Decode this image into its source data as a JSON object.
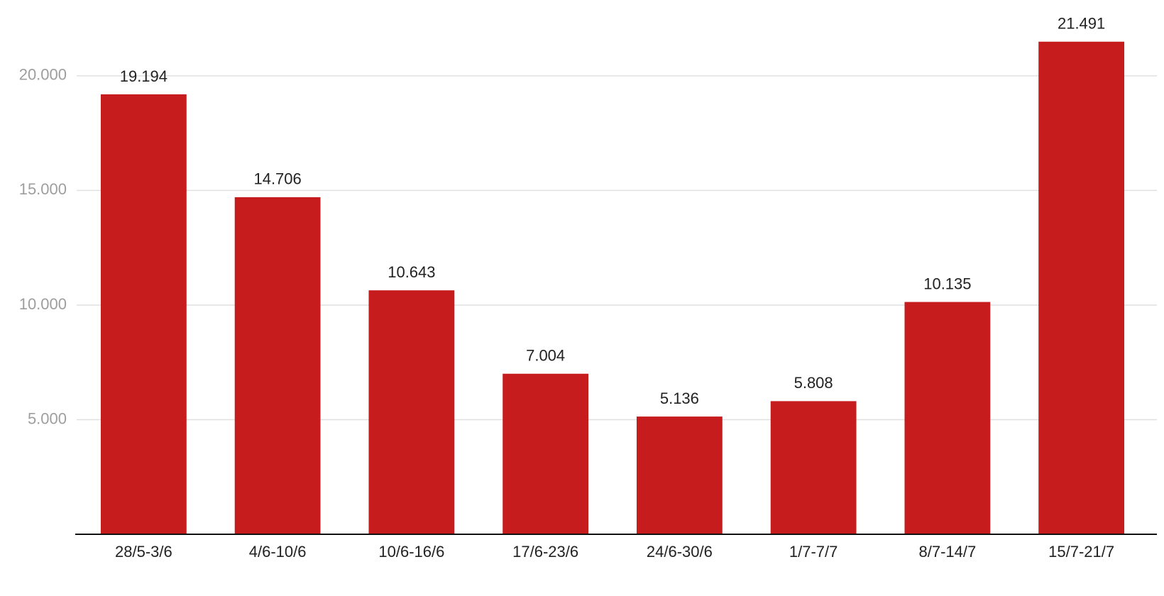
{
  "chart_data": {
    "type": "bar",
    "categories": [
      "28/5-3/6",
      "4/6-10/6",
      "10/6-16/6",
      "17/6-23/6",
      "24/6-30/6",
      "1/7-7/7",
      "8/7-14/7",
      "15/7-21/7"
    ],
    "values": [
      19194,
      14706,
      10643,
      7004,
      5136,
      5808,
      10135,
      21491
    ],
    "value_labels": [
      "19.194",
      "14.706",
      "10.643",
      "7.004",
      "5.136",
      "5.808",
      "10.135",
      "21.491"
    ],
    "color": "#c71c1d",
    "ylim": [
      0,
      23000
    ],
    "yticks": [
      {
        "value": 5000,
        "label": "5.000"
      },
      {
        "value": 10000,
        "label": "10.000"
      },
      {
        "value": 15000,
        "label": "15.000"
      },
      {
        "value": 20000,
        "label": "20.000"
      }
    ],
    "grid": true
  }
}
